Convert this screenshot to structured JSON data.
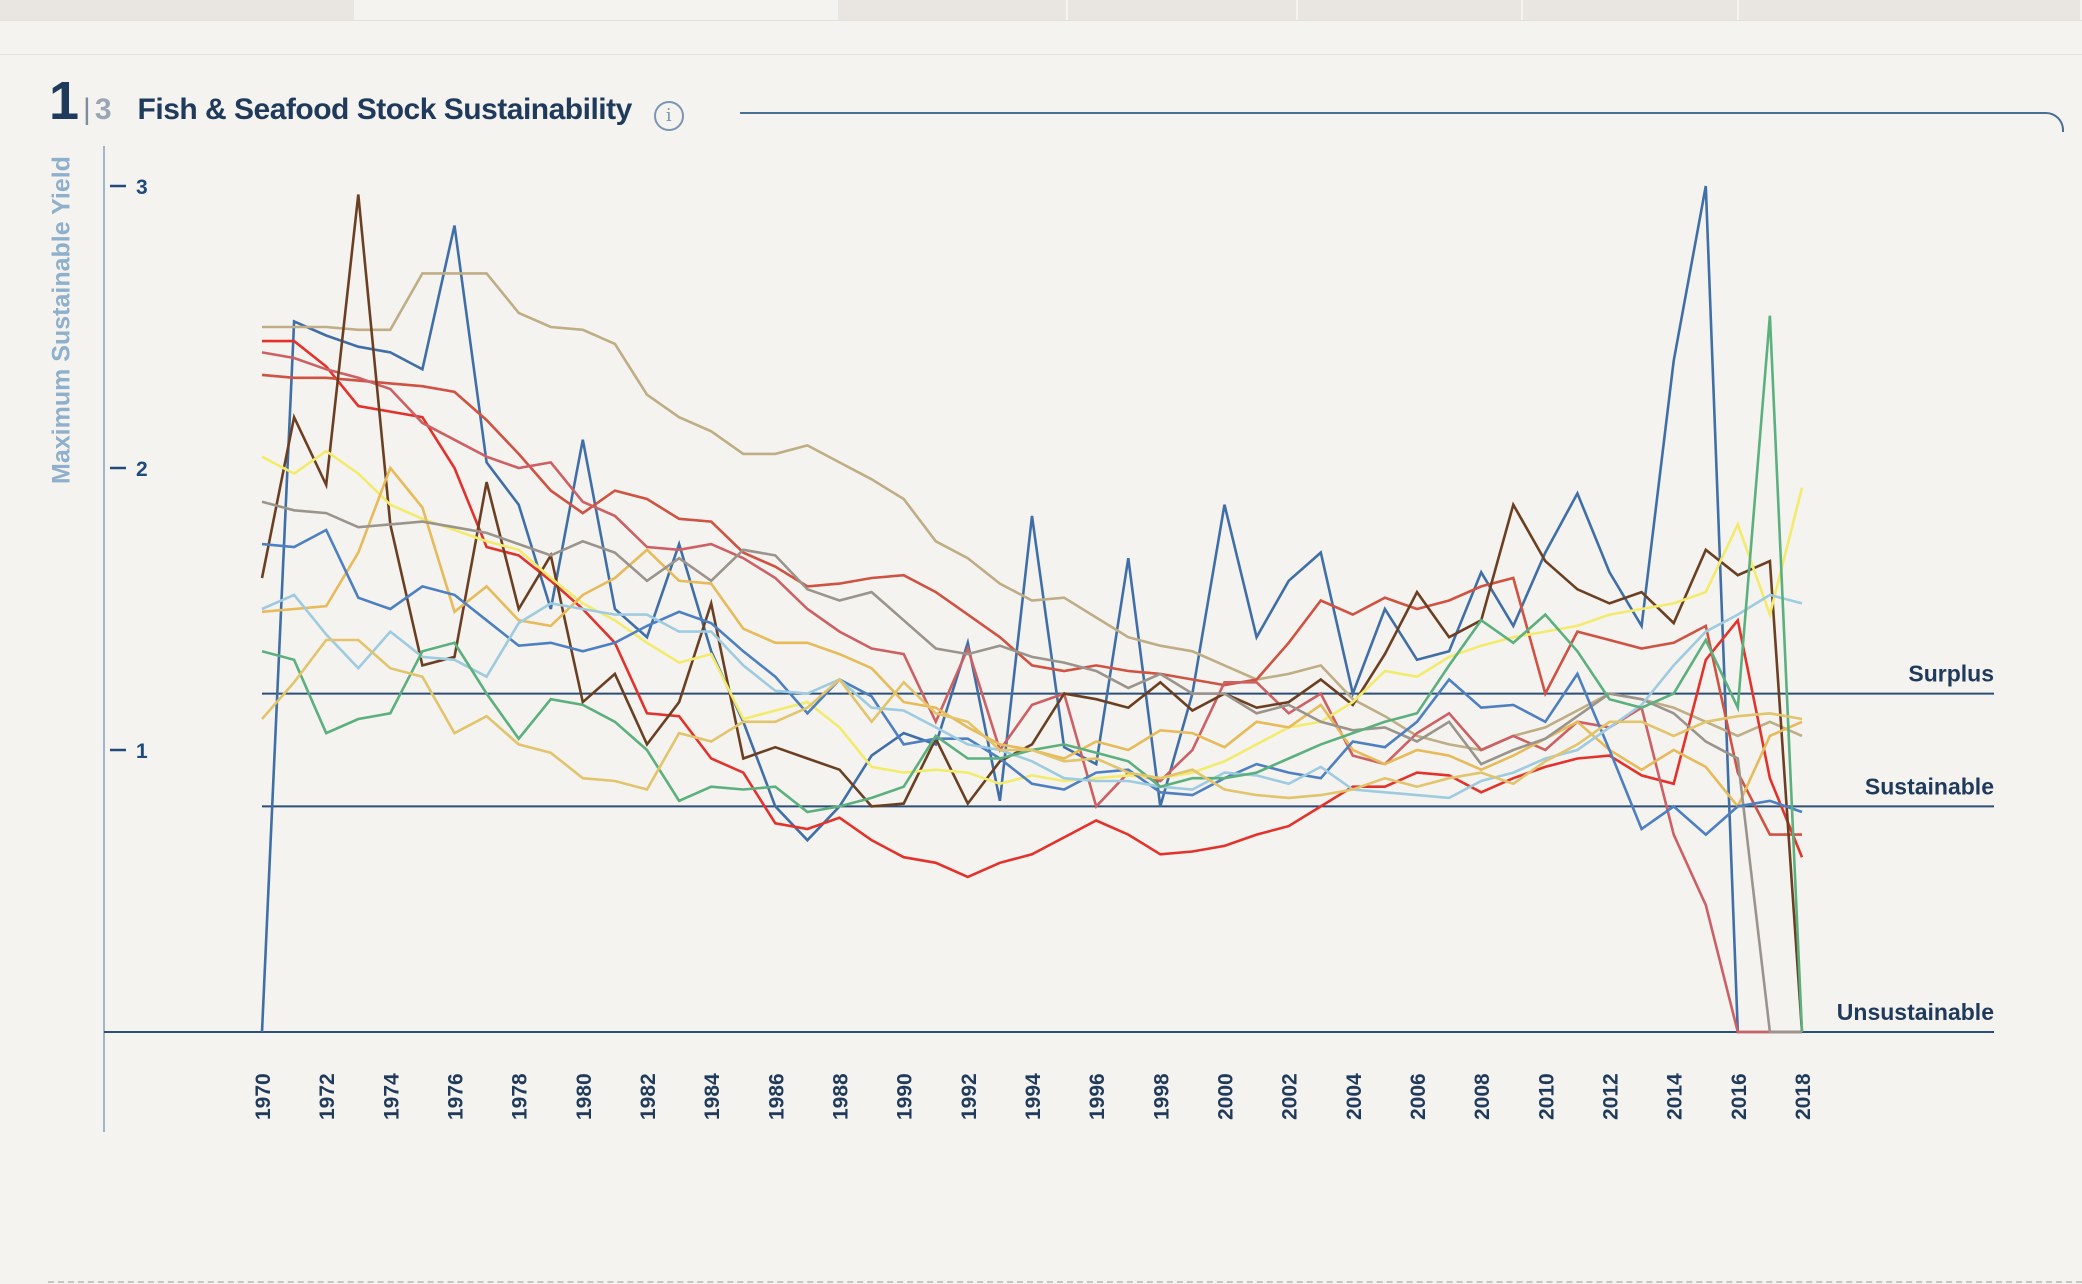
{
  "header": {
    "page_number": "1",
    "page_separator": "|",
    "page_total": "3",
    "title": "Fish & Seafood Stock Sustainability",
    "info_glyph": "i"
  },
  "chart_data": {
    "type": "line",
    "title": "Fish & Seafood Stock Sustainability",
    "ylabel": "Maximum Sustainable Yield",
    "xlabel": "",
    "xlim": [
      1970,
      2018
    ],
    "ylim": [
      0,
      3
    ],
    "yticks": [
      {
        "value": 1,
        "label": "1"
      },
      {
        "value": 2,
        "label": "2"
      },
      {
        "value": 3,
        "label": "3"
      }
    ],
    "xtick_labels": [
      "1970",
      "1972",
      "1974",
      "1976",
      "1978",
      "1980",
      "1982",
      "1984",
      "1986",
      "1988",
      "1990",
      "1992",
      "1994",
      "1996",
      "1998",
      "2000",
      "2002",
      "2004",
      "2006",
      "2008",
      "2010",
      "2012",
      "2014",
      "2016",
      "2018"
    ],
    "reference_lines": [
      {
        "value": 1.2,
        "label": "Surplus"
      },
      {
        "value": 0.8,
        "label": "Sustainable"
      },
      {
        "value": 0,
        "label": "Unsustainable"
      }
    ],
    "grid": false,
    "legend": "none",
    "x": [
      1970,
      1971,
      1972,
      1973,
      1974,
      1975,
      1976,
      1977,
      1978,
      1979,
      1980,
      1981,
      1982,
      1983,
      1984,
      1985,
      1986,
      1987,
      1988,
      1989,
      1990,
      1991,
      1992,
      1993,
      1994,
      1995,
      1996,
      1997,
      1998,
      1999,
      2000,
      2001,
      2002,
      2003,
      2004,
      2005,
      2006,
      2007,
      2008,
      2009,
      2010,
      2011,
      2012,
      2013,
      2014,
      2015,
      2016,
      2017,
      2018
    ],
    "series": [
      {
        "color": "#3f6fa6",
        "values": [
          0,
          2.52,
          2.47,
          2.43,
          2.41,
          2.35,
          2.86,
          2.02,
          1.87,
          1.5,
          2.1,
          1.5,
          1.4,
          1.73,
          1.35,
          1.1,
          0.8,
          0.68,
          0.8,
          0.98,
          1.06,
          1.02,
          1.38,
          0.82,
          1.83,
          1.01,
          0.95,
          1.68,
          0.8,
          1.2,
          1.87,
          1.4,
          1.6,
          1.7,
          1.2,
          1.5,
          1.32,
          1.35,
          1.63,
          1.44,
          1.7,
          1.91,
          1.63,
          1.44,
          2.38,
          3.0,
          0,
          0,
          0
        ]
      },
      {
        "color": "#bfae85",
        "values": [
          2.5,
          2.5,
          2.5,
          2.49,
          2.49,
          2.69,
          2.69,
          2.69,
          2.55,
          2.5,
          2.49,
          2.44,
          2.26,
          2.18,
          2.13,
          2.05,
          2.05,
          2.08,
          2.02,
          1.96,
          1.89,
          1.74,
          1.68,
          1.59,
          1.53,
          1.54,
          1.47,
          1.4,
          1.37,
          1.35,
          1.3,
          1.25,
          1.27,
          1.3,
          1.18,
          1.12,
          1.05,
          1.02,
          1.0,
          1.05,
          1.08,
          1.14,
          1.2,
          1.18,
          1.15,
          1.1,
          1.05,
          1.1,
          1.05
        ]
      },
      {
        "color": "#e3322b",
        "values": [
          2.45,
          2.45,
          2.36,
          2.22,
          2.2,
          2.18,
          2.0,
          1.72,
          1.69,
          1.6,
          1.5,
          1.38,
          1.13,
          1.12,
          0.97,
          0.92,
          0.74,
          0.72,
          0.76,
          0.68,
          0.62,
          0.6,
          0.55,
          0.6,
          0.63,
          0.69,
          0.75,
          0.7,
          0.63,
          0.64,
          0.66,
          0.7,
          0.73,
          0.8,
          0.87,
          0.87,
          0.92,
          0.91,
          0.85,
          0.9,
          0.94,
          0.97,
          0.98,
          0.91,
          0.88,
          1.32,
          1.46,
          0.9,
          0.62
        ]
      },
      {
        "color": "#cf5242",
        "values": [
          2.33,
          2.32,
          2.32,
          2.31,
          2.3,
          2.29,
          2.27,
          2.17,
          2.05,
          1.92,
          1.84,
          1.92,
          1.89,
          1.82,
          1.81,
          1.7,
          1.65,
          1.58,
          1.59,
          1.61,
          1.62,
          1.56,
          1.48,
          1.4,
          1.3,
          1.28,
          1.3,
          1.28,
          1.27,
          1.25,
          1.23,
          1.25,
          1.38,
          1.53,
          1.48,
          1.54,
          1.5,
          1.53,
          1.58,
          1.61,
          1.2,
          1.42,
          1.39,
          1.36,
          1.38,
          1.44,
          0.92,
          0.7,
          0.7
        ]
      },
      {
        "color": "#cd6064",
        "values": [
          2.41,
          2.39,
          2.35,
          2.32,
          2.28,
          2.16,
          2.1,
          2.04,
          2.0,
          2.02,
          1.88,
          1.83,
          1.72,
          1.71,
          1.73,
          1.68,
          1.61,
          1.5,
          1.42,
          1.36,
          1.34,
          1.1,
          1.36,
          1.0,
          1.16,
          1.2,
          0.8,
          0.92,
          0.89,
          1.0,
          1.24,
          1.24,
          1.13,
          1.2,
          0.98,
          0.95,
          1.06,
          1.13,
          1.0,
          1.05,
          1.0,
          1.1,
          1.08,
          1.15,
          0.7,
          0.45,
          0.0,
          0.0,
          0.0
        ]
      },
      {
        "color": "#6b3f22",
        "values": [
          1.61,
          2.18,
          1.94,
          2.97,
          1.8,
          1.3,
          1.33,
          1.95,
          1.5,
          1.69,
          1.17,
          1.27,
          1.02,
          1.17,
          1.52,
          0.97,
          1.01,
          0.97,
          0.93,
          0.8,
          0.81,
          1.04,
          0.81,
          0.96,
          1.02,
          1.2,
          1.18,
          1.15,
          1.24,
          1.14,
          1.2,
          1.15,
          1.17,
          1.25,
          1.16,
          1.34,
          1.56,
          1.4,
          1.46,
          1.87,
          1.67,
          1.57,
          1.52,
          1.56,
          1.45,
          1.71,
          1.62,
          1.67,
          0.0
        ]
      },
      {
        "color": "#f2eb6c",
        "values": [
          2.04,
          1.98,
          2.06,
          1.98,
          1.87,
          1.82,
          1.78,
          1.74,
          1.71,
          1.61,
          1.52,
          1.46,
          1.38,
          1.31,
          1.34,
          1.11,
          1.14,
          1.17,
          1.08,
          0.94,
          0.92,
          0.93,
          0.92,
          0.88,
          0.91,
          0.89,
          0.9,
          0.91,
          0.9,
          0.92,
          0.96,
          1.02,
          1.08,
          1.1,
          1.17,
          1.28,
          1.26,
          1.33,
          1.37,
          1.4,
          1.42,
          1.44,
          1.48,
          1.5,
          1.52,
          1.56,
          1.8,
          1.48,
          1.93
        ]
      },
      {
        "color": "#e7ba5a",
        "values": [
          1.49,
          1.5,
          1.51,
          1.7,
          2.0,
          1.86,
          1.49,
          1.58,
          1.46,
          1.44,
          1.55,
          1.61,
          1.71,
          1.6,
          1.59,
          1.43,
          1.38,
          1.38,
          1.34,
          1.29,
          1.17,
          1.15,
          1.08,
          1.02,
          1.0,
          0.97,
          1.03,
          1.0,
          1.07,
          1.06,
          1.01,
          1.1,
          1.08,
          1.16,
          1.0,
          0.95,
          1.0,
          0.98,
          0.93,
          0.98,
          1.04,
          1.1,
          1.0,
          0.93,
          1.0,
          0.94,
          0.8,
          1.05,
          1.1
        ]
      },
      {
        "color": "#9a948c",
        "values": [
          1.88,
          1.85,
          1.84,
          1.79,
          1.8,
          1.81,
          1.79,
          1.77,
          1.73,
          1.69,
          1.74,
          1.7,
          1.6,
          1.68,
          1.6,
          1.71,
          1.69,
          1.57,
          1.53,
          1.56,
          1.46,
          1.36,
          1.34,
          1.37,
          1.33,
          1.31,
          1.28,
          1.22,
          1.27,
          1.2,
          1.2,
          1.13,
          1.16,
          1.1,
          1.07,
          1.08,
          1.03,
          1.1,
          0.95,
          1.0,
          1.04,
          1.12,
          1.2,
          1.18,
          1.13,
          1.03,
          0.97,
          0.0,
          0.0
        ]
      },
      {
        "color": "#4d7fc1",
        "values": [
          1.73,
          1.72,
          1.78,
          1.54,
          1.5,
          1.58,
          1.55,
          1.46,
          1.37,
          1.38,
          1.35,
          1.38,
          1.44,
          1.49,
          1.45,
          1.35,
          1.26,
          1.13,
          1.25,
          1.19,
          1.02,
          1.04,
          1.04,
          0.97,
          0.88,
          0.86,
          0.92,
          0.93,
          0.85,
          0.84,
          0.9,
          0.95,
          0.92,
          0.9,
          1.03,
          1.01,
          1.1,
          1.25,
          1.15,
          1.16,
          1.1,
          1.27,
          1.0,
          0.72,
          0.8,
          0.7,
          0.8,
          0.82,
          0.78
        ]
      },
      {
        "color": "#9fcbe0",
        "values": [
          1.5,
          1.55,
          1.41,
          1.29,
          1.42,
          1.33,
          1.32,
          1.26,
          1.45,
          1.52,
          1.5,
          1.48,
          1.48,
          1.42,
          1.42,
          1.3,
          1.21,
          1.2,
          1.25,
          1.15,
          1.14,
          1.08,
          1.02,
          1.0,
          0.96,
          0.9,
          0.89,
          0.89,
          0.87,
          0.86,
          0.92,
          0.91,
          0.88,
          0.94,
          0.86,
          0.85,
          0.84,
          0.83,
          0.89,
          0.92,
          0.97,
          1.0,
          1.08,
          1.16,
          1.3,
          1.42,
          1.48,
          1.55,
          1.52
        ]
      },
      {
        "color": "#5bb07e",
        "values": [
          1.35,
          1.32,
          1.06,
          1.11,
          1.13,
          1.35,
          1.38,
          1.2,
          1.04,
          1.18,
          1.16,
          1.1,
          1.0,
          0.82,
          0.87,
          0.86,
          0.87,
          0.78,
          0.8,
          0.83,
          0.87,
          1.05,
          0.97,
          0.97,
          1.0,
          1.02,
          0.99,
          0.96,
          0.87,
          0.9,
          0.9,
          0.92,
          0.97,
          1.02,
          1.06,
          1.1,
          1.13,
          1.3,
          1.46,
          1.38,
          1.48,
          1.35,
          1.18,
          1.15,
          1.2,
          1.39,
          1.15,
          2.54,
          0.0
        ]
      },
      {
        "color": "#e2c46c",
        "values": [
          1.11,
          1.24,
          1.39,
          1.39,
          1.29,
          1.26,
          1.06,
          1.12,
          1.02,
          0.99,
          0.9,
          0.89,
          0.86,
          1.06,
          1.03,
          1.1,
          1.1,
          1.15,
          1.25,
          1.1,
          1.24,
          1.13,
          1.1,
          1.0,
          1.0,
          0.96,
          0.97,
          0.92,
          0.9,
          0.93,
          0.86,
          0.84,
          0.83,
          0.84,
          0.86,
          0.9,
          0.87,
          0.9,
          0.92,
          0.88,
          0.96,
          1.02,
          1.1,
          1.1,
          1.05,
          1.1,
          1.12,
          1.13,
          1.11
        ]
      }
    ]
  }
}
